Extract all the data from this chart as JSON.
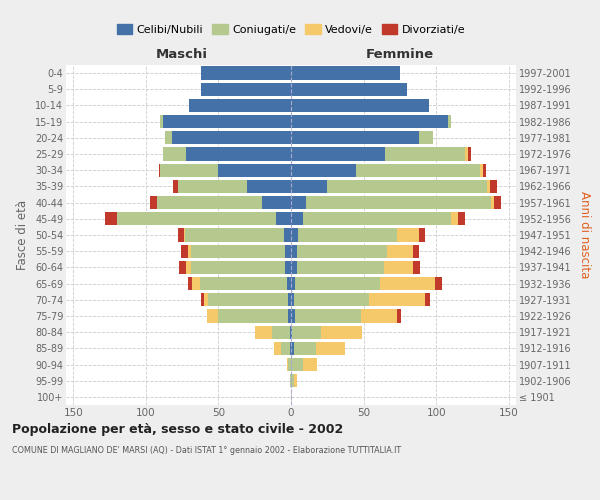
{
  "age_groups": [
    "100+",
    "95-99",
    "90-94",
    "85-89",
    "80-84",
    "75-79",
    "70-74",
    "65-69",
    "60-64",
    "55-59",
    "50-54",
    "45-49",
    "40-44",
    "35-39",
    "30-34",
    "25-29",
    "20-24",
    "15-19",
    "10-14",
    "5-9",
    "0-4"
  ],
  "birth_years": [
    "≤ 1901",
    "1902-1906",
    "1907-1911",
    "1912-1916",
    "1917-1921",
    "1922-1926",
    "1927-1931",
    "1932-1936",
    "1937-1941",
    "1942-1946",
    "1947-1951",
    "1952-1956",
    "1957-1961",
    "1962-1966",
    "1967-1971",
    "1972-1976",
    "1977-1981",
    "1982-1986",
    "1987-1991",
    "1992-1996",
    "1997-2001"
  ],
  "males_celibi": [
    0,
    0,
    0,
    1,
    1,
    2,
    2,
    3,
    4,
    4,
    5,
    10,
    20,
    30,
    50,
    72,
    82,
    88,
    70,
    62,
    62
  ],
  "males_coniugati": [
    0,
    1,
    2,
    6,
    12,
    48,
    55,
    60,
    65,
    65,
    68,
    110,
    72,
    48,
    40,
    16,
    5,
    2,
    0,
    0,
    0
  ],
  "males_vedovi": [
    0,
    0,
    1,
    5,
    12,
    8,
    3,
    5,
    3,
    2,
    1,
    0,
    0,
    0,
    0,
    0,
    0,
    0,
    0,
    0,
    0
  ],
  "males_divorziati": [
    0,
    0,
    0,
    0,
    0,
    0,
    2,
    3,
    5,
    5,
    4,
    8,
    5,
    3,
    1,
    0,
    0,
    0,
    0,
    0,
    0
  ],
  "females_nubili": [
    0,
    0,
    0,
    2,
    1,
    3,
    2,
    3,
    4,
    4,
    5,
    8,
    10,
    25,
    45,
    65,
    88,
    108,
    95,
    80,
    75
  ],
  "females_coniugate": [
    0,
    2,
    8,
    15,
    20,
    45,
    52,
    58,
    60,
    62,
    68,
    102,
    128,
    110,
    85,
    55,
    10,
    2,
    0,
    0,
    0
  ],
  "females_vedove": [
    0,
    2,
    10,
    20,
    28,
    25,
    38,
    38,
    20,
    18,
    15,
    5,
    2,
    2,
    2,
    2,
    0,
    0,
    0,
    0,
    0
  ],
  "females_divorziate": [
    0,
    0,
    0,
    0,
    0,
    3,
    4,
    5,
    5,
    4,
    4,
    5,
    5,
    5,
    2,
    2,
    0,
    0,
    0,
    0,
    0
  ],
  "color_celibi": "#4472a8",
  "color_coniugati": "#b5c98e",
  "color_vedovi": "#f5c96a",
  "color_divorziati": "#c0392b",
  "xlim": 155,
  "title": "Popolazione per età, sesso e stato civile - 2002",
  "subtitle": "COMUNE DI MAGLIANO DE' MARSI (AQ) - Dati ISTAT 1° gennaio 2002 - Elaborazione TUTTITALIA.IT",
  "label_maschi": "Maschi",
  "label_femmine": "Femmine",
  "ylabel_left": "Fasce di età",
  "ylabel_right": "Anni di nascita",
  "legend_labels": [
    "Celibi/Nubili",
    "Coniugati/e",
    "Vedovi/e",
    "Divorziati/e"
  ],
  "bg_color": "#eeeeee",
  "plot_bg": "#ffffff"
}
